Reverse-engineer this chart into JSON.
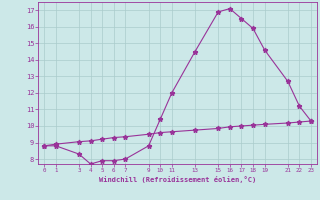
{
  "x_main": [
    0,
    1,
    3,
    4,
    5,
    6,
    7,
    9,
    10,
    11,
    13,
    15,
    16,
    17,
    18,
    19,
    21,
    22,
    23
  ],
  "y_main": [
    8.8,
    8.8,
    8.3,
    7.7,
    7.9,
    7.9,
    8.0,
    8.8,
    10.4,
    12.0,
    14.5,
    16.9,
    17.1,
    16.5,
    15.9,
    14.6,
    12.7,
    11.2,
    10.3
  ],
  "x_flat": [
    0,
    1,
    3,
    4,
    5,
    6,
    7,
    9,
    10,
    11,
    13,
    15,
    16,
    17,
    18,
    19,
    21,
    22,
    23
  ],
  "y_flat": [
    8.8,
    8.9,
    9.05,
    9.1,
    9.2,
    9.3,
    9.35,
    9.5,
    9.6,
    9.65,
    9.75,
    9.85,
    9.95,
    10.0,
    10.05,
    10.1,
    10.18,
    10.24,
    10.3
  ],
  "line_color": "#993399",
  "bg_color": "#cce8e8",
  "grid_color": "#aacccc",
  "xlabel": "Windchill (Refroidissement éolien,°C)",
  "xlim": [
    -0.5,
    23.5
  ],
  "ylim": [
    7.7,
    17.5
  ],
  "xticks": [
    0,
    1,
    3,
    4,
    5,
    6,
    7,
    9,
    10,
    11,
    13,
    15,
    16,
    17,
    18,
    19,
    21,
    22,
    23
  ],
  "yticks": [
    8,
    9,
    10,
    11,
    12,
    13,
    14,
    15,
    16,
    17
  ],
  "marker": "*",
  "markersize": 3.5,
  "linewidth": 0.8
}
